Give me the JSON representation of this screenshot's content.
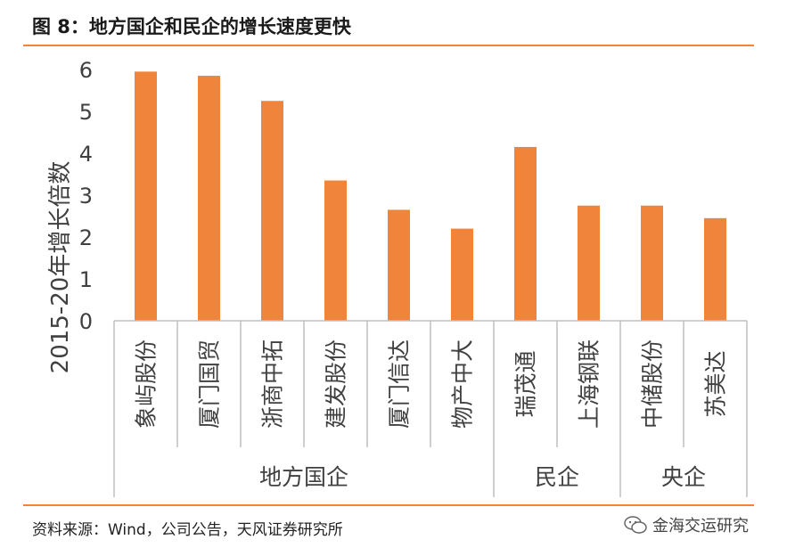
{
  "header": {
    "title": "图 8：地方国企和民企的增长速度更快"
  },
  "footer": {
    "source": "资料来源：Wind，公司公告，天风证券研究所",
    "brand": "金海交运研究"
  },
  "colors": {
    "bar": "#f0843a",
    "rule": "#f0843a",
    "axis": "#bfbfbf",
    "text": "#404040"
  },
  "chart_data": {
    "type": "bar",
    "categories": [
      "象屿股份",
      "厦门国贸",
      "浙商中拓",
      "建发股份",
      "厦门信达",
      "物产中大",
      "瑞茂通",
      "上海钢联",
      "中储股份",
      "苏美达"
    ],
    "values": [
      5.95,
      5.85,
      5.25,
      3.35,
      2.65,
      2.2,
      4.15,
      2.75,
      2.75,
      2.45
    ],
    "groups": [
      {
        "label": "地方国企",
        "count": 6
      },
      {
        "label": "民企",
        "count": 2
      },
      {
        "label": "央企",
        "count": 2
      }
    ],
    "ylabel": "2015-20年增长倍数",
    "ylim": [
      0,
      6
    ],
    "yticks": [
      "0",
      "1",
      "2",
      "3",
      "4",
      "5",
      "6"
    ],
    "grid": false,
    "legend": "none"
  }
}
